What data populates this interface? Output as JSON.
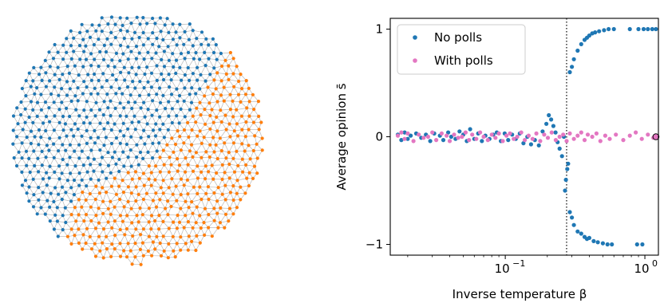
{
  "colors": {
    "blue": "#1f77b4",
    "orange": "#ff7f0e",
    "pink": "#e377c2",
    "edge": "#b8b8b8"
  },
  "network": {
    "description_visible": "",
    "node_colors": [
      "blue",
      "orange"
    ]
  },
  "chart_data": {
    "type": "scatter",
    "title": "",
    "xlabel": "Inverse temperature β",
    "ylabel": "Average opinion s̄",
    "xscale": "log",
    "xlim": [
      0.015,
      1.25
    ],
    "ylim": [
      -1.1,
      1.1
    ],
    "xticks": [
      {
        "value": 0.1,
        "label": "10",
        "exp": "−1"
      },
      {
        "value": 1,
        "label": "10",
        "exp": "0"
      }
    ],
    "yticks": [
      {
        "value": 1,
        "label": "1"
      },
      {
        "value": 0,
        "label": "0"
      },
      {
        "value": -1,
        "label": "−1"
      }
    ],
    "vline": 0.275,
    "legend": {
      "position": "top-left"
    },
    "series": [
      {
        "name": "No polls",
        "color": "#1f77b4",
        "points": [
          [
            0.017,
            0.02
          ],
          [
            0.018,
            -0.03
          ],
          [
            0.019,
            0.04
          ],
          [
            0.02,
            -0.02
          ],
          [
            0.021,
            0.01
          ],
          [
            0.023,
            0.03
          ],
          [
            0.025,
            -0.01
          ],
          [
            0.027,
            0.02
          ],
          [
            0.029,
            -0.04
          ],
          [
            0.031,
            0.03
          ],
          [
            0.034,
            0.01
          ],
          [
            0.036,
            -0.03
          ],
          [
            0.039,
            0.04
          ],
          [
            0.041,
            0.0
          ],
          [
            0.044,
            -0.02
          ],
          [
            0.047,
            0.05
          ],
          [
            0.05,
            0.02
          ],
          [
            0.053,
            -0.04
          ],
          [
            0.056,
            0.07
          ],
          [
            0.06,
            -0.02
          ],
          [
            0.064,
            0.03
          ],
          [
            0.068,
            -0.04
          ],
          [
            0.072,
            0.01
          ],
          [
            0.077,
            -0.02
          ],
          [
            0.082,
            0.02
          ],
          [
            0.087,
            0.04
          ],
          [
            0.093,
            -0.04
          ],
          [
            0.099,
            0.03
          ],
          [
            0.105,
            -0.03
          ],
          [
            0.112,
            0.02
          ],
          [
            0.119,
            -0.02
          ],
          [
            0.127,
            0.03
          ],
          [
            0.135,
            -0.06
          ],
          [
            0.144,
            0.0
          ],
          [
            0.153,
            -0.07
          ],
          [
            0.163,
            -0.03
          ],
          [
            0.174,
            -0.08
          ],
          [
            0.185,
            0.05
          ],
          [
            0.197,
            0.12
          ],
          [
            0.205,
            0.2
          ],
          [
            0.213,
            0.16
          ],
          [
            0.221,
            0.1
          ],
          [
            0.229,
            0.04
          ],
          [
            0.237,
            -0.05
          ],
          [
            0.245,
            -0.11
          ],
          [
            0.255,
            -0.18
          ],
          [
            0.263,
            0.0
          ],
          [
            0.268,
            -0.5
          ],
          [
            0.272,
            -0.4
          ],
          [
            0.278,
            -0.3
          ],
          [
            0.282,
            -0.25
          ],
          [
            0.29,
            -0.7
          ],
          [
            0.3,
            -0.75
          ],
          [
            0.31,
            -0.82
          ],
          [
            0.33,
            -0.88
          ],
          [
            0.35,
            -0.9
          ],
          [
            0.37,
            -0.93
          ],
          [
            0.385,
            -0.95
          ],
          [
            0.4,
            -0.94
          ],
          [
            0.43,
            -0.97
          ],
          [
            0.46,
            -0.98
          ],
          [
            0.5,
            -0.99
          ],
          [
            0.54,
            -1.0
          ],
          [
            0.58,
            -1.0
          ],
          [
            0.88,
            -1.0
          ],
          [
            0.96,
            -1.0
          ],
          [
            0.29,
            0.6
          ],
          [
            0.3,
            0.65
          ],
          [
            0.31,
            0.72
          ],
          [
            0.33,
            0.8
          ],
          [
            0.35,
            0.86
          ],
          [
            0.37,
            0.9
          ],
          [
            0.385,
            0.92
          ],
          [
            0.4,
            0.94
          ],
          [
            0.42,
            0.96
          ],
          [
            0.44,
            0.97
          ],
          [
            0.47,
            0.98
          ],
          [
            0.51,
            0.99
          ],
          [
            0.55,
            1.0
          ],
          [
            0.6,
            1.0
          ],
          [
            0.78,
            1.0
          ],
          [
            0.9,
            1.0
          ],
          [
            0.98,
            1.0
          ],
          [
            1.05,
            1.0
          ],
          [
            1.13,
            1.0
          ],
          [
            1.2,
            1.0
          ]
        ]
      },
      {
        "name": "With polls",
        "color": "#e377c2",
        "points": [
          [
            0.017,
            0.01
          ],
          [
            0.018,
            0.04
          ],
          [
            0.019,
            -0.02
          ],
          [
            0.02,
            0.03
          ],
          [
            0.022,
            -0.04
          ],
          [
            0.024,
            0.02
          ],
          [
            0.026,
            -0.01
          ],
          [
            0.028,
            0.0
          ],
          [
            0.03,
            0.04
          ],
          [
            0.032,
            -0.03
          ],
          [
            0.035,
            0.03
          ],
          [
            0.038,
            0.01
          ],
          [
            0.04,
            -0.04
          ],
          [
            0.043,
            0.02
          ],
          [
            0.046,
            -0.01
          ],
          [
            0.049,
            0.0
          ],
          [
            0.052,
            0.04
          ],
          [
            0.055,
            -0.03
          ],
          [
            0.058,
            0.02
          ],
          [
            0.062,
            -0.02
          ],
          [
            0.066,
            0.04
          ],
          [
            0.07,
            0.0
          ],
          [
            0.075,
            -0.03
          ],
          [
            0.08,
            0.02
          ],
          [
            0.085,
            -0.01
          ],
          [
            0.09,
            0.03
          ],
          [
            0.096,
            -0.04
          ],
          [
            0.102,
            0.01
          ],
          [
            0.108,
            0.03
          ],
          [
            0.115,
            -0.02
          ],
          [
            0.122,
            0.0
          ],
          [
            0.13,
            0.04
          ],
          [
            0.138,
            -0.03
          ],
          [
            0.147,
            0.01
          ],
          [
            0.157,
            -0.02
          ],
          [
            0.167,
            0.03
          ],
          [
            0.178,
            -0.04
          ],
          [
            0.19,
            0.02
          ],
          [
            0.202,
            -0.01
          ],
          [
            0.215,
            0.04
          ],
          [
            0.23,
            -0.03
          ],
          [
            0.245,
            0.0
          ],
          [
            0.26,
            0.02
          ],
          [
            0.275,
            -0.04
          ],
          [
            0.29,
            0.03
          ],
          [
            0.31,
            -0.02
          ],
          [
            0.33,
            0.01
          ],
          [
            0.35,
            0.04
          ],
          [
            0.37,
            -0.03
          ],
          [
            0.39,
            0.02
          ],
          [
            0.42,
            0.0
          ],
          [
            0.45,
            0.03
          ],
          [
            0.48,
            -0.04
          ],
          [
            0.52,
            0.01
          ],
          [
            0.56,
            -0.02
          ],
          [
            0.62,
            0.02
          ],
          [
            0.7,
            -0.03
          ],
          [
            0.78,
            0.01
          ],
          [
            0.86,
            0.04
          ],
          [
            0.95,
            -0.02
          ],
          [
            1.05,
            0.02
          ],
          [
            1.15,
            -0.01
          ]
        ]
      }
    ],
    "highlight_point": {
      "x": 1.2,
      "y": 0.0,
      "color": "#e377c2"
    }
  }
}
